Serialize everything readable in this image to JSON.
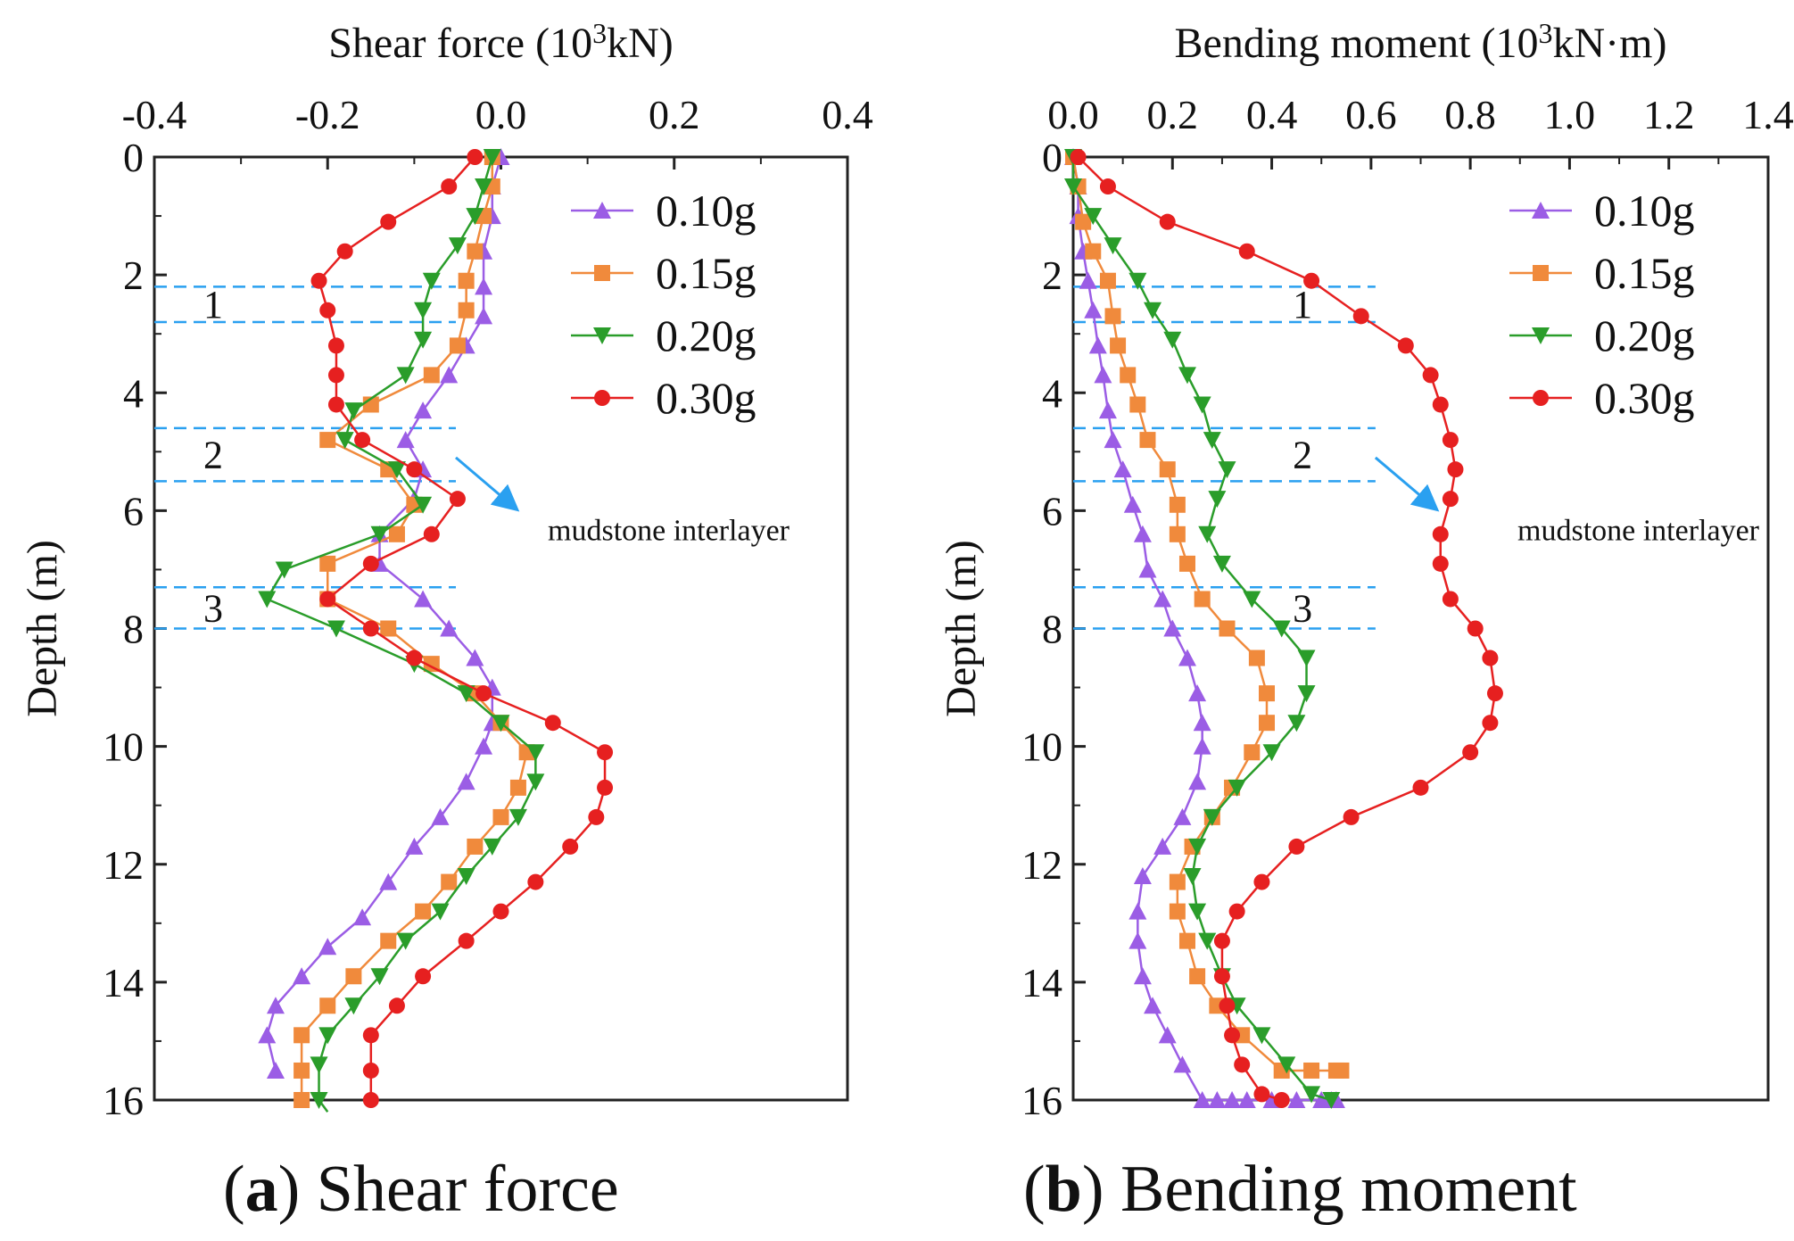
{
  "figure": {
    "captions": [
      {
        "letter": "a",
        "text": ") Shear force",
        "open": "("
      },
      {
        "letter": "b",
        "text": ") Bending moment",
        "open": "("
      }
    ]
  },
  "chart_data": [
    {
      "type": "line",
      "title": "",
      "xlabel_main": "Shear force (10",
      "xlabel_sup": "3",
      "xlabel_tail": "kN)",
      "ylabel": "Depth (m)",
      "xlim": [
        -0.4,
        0.4
      ],
      "ylim": [
        0,
        16
      ],
      "y_inverted": true,
      "x_ticks": [
        "-0.4",
        "-0.2",
        "0.0",
        "0.2",
        "0.4"
      ],
      "y_ticks": [
        "0",
        "2",
        "4",
        "6",
        "8",
        "10",
        "12",
        "14",
        "16"
      ],
      "legend": {
        "position": "top-right"
      },
      "annotation": "mudstone interlayer",
      "layers": [
        {
          "label": "1",
          "top": 2.2,
          "bottom": 2.8
        },
        {
          "label": "2",
          "top": 4.6,
          "bottom": 5.5
        },
        {
          "label": "3",
          "top": 7.3,
          "bottom": 8.0
        }
      ],
      "series": [
        {
          "name": "0.10g",
          "color": "#9b5de5",
          "marker": "triangle-up",
          "x": [
            0.0,
            -0.01,
            -0.01,
            -0.02,
            -0.02,
            -0.02,
            -0.04,
            -0.06,
            -0.09,
            -0.11,
            -0.09,
            -0.1,
            -0.14,
            -0.14,
            -0.09,
            -0.06,
            -0.03,
            -0.01,
            -0.01,
            -0.02,
            -0.04,
            -0.07,
            -0.1,
            -0.13,
            -0.16,
            -0.2,
            -0.23,
            -0.26,
            -0.27,
            -0.26
          ],
          "y": [
            0.0,
            0.5,
            1.0,
            1.6,
            2.2,
            2.7,
            3.2,
            3.7,
            4.3,
            4.8,
            5.3,
            5.8,
            6.4,
            6.9,
            7.5,
            8.0,
            8.5,
            9.0,
            9.6,
            10.0,
            10.6,
            11.2,
            11.7,
            12.3,
            12.9,
            13.4,
            13.9,
            14.4,
            14.9,
            15.5
          ]
        },
        {
          "name": "0.15g",
          "color": "#f08a3c",
          "marker": "square",
          "x": [
            -0.01,
            -0.01,
            -0.02,
            -0.03,
            -0.04,
            -0.04,
            -0.05,
            -0.08,
            -0.15,
            -0.2,
            -0.13,
            -0.1,
            -0.12,
            -0.2,
            -0.2,
            -0.13,
            -0.08,
            -0.03,
            0.0,
            0.03,
            0.02,
            0.0,
            -0.03,
            -0.06,
            -0.09,
            -0.13,
            -0.17,
            -0.2,
            -0.23,
            -0.23,
            -0.23
          ],
          "y": [
            0.0,
            0.5,
            1.0,
            1.6,
            2.1,
            2.6,
            3.2,
            3.7,
            4.2,
            4.8,
            5.3,
            5.9,
            6.4,
            6.9,
            7.5,
            8.0,
            8.6,
            9.1,
            9.6,
            10.1,
            10.7,
            11.2,
            11.7,
            12.3,
            12.8,
            13.3,
            13.9,
            14.4,
            14.9,
            15.5,
            16.0
          ]
        },
        {
          "name": "0.20g",
          "color": "#2a9d2a",
          "marker": "triangle-down",
          "x": [
            -0.01,
            -0.02,
            -0.03,
            -0.05,
            -0.08,
            -0.09,
            -0.09,
            -0.11,
            -0.17,
            -0.18,
            -0.12,
            -0.09,
            -0.14,
            -0.25,
            -0.27,
            -0.19,
            -0.1,
            -0.04,
            0.0,
            0.04,
            0.04,
            0.02,
            -0.01,
            -0.04,
            -0.07,
            -0.11,
            -0.14,
            -0.17,
            -0.2,
            -0.21,
            -0.21,
            -0.2
          ],
          "y": [
            0.0,
            0.5,
            1.0,
            1.5,
            2.1,
            2.6,
            3.1,
            3.7,
            4.3,
            4.8,
            5.3,
            5.9,
            6.4,
            7.0,
            7.5,
            8.0,
            8.6,
            9.1,
            9.6,
            10.1,
            10.6,
            11.2,
            11.7,
            12.2,
            12.8,
            13.3,
            13.9,
            14.4,
            14.9,
            15.4,
            16.0,
            16.2
          ]
        },
        {
          "name": "0.30g",
          "color": "#e62020",
          "marker": "circle",
          "x": [
            -0.03,
            -0.06,
            -0.13,
            -0.18,
            -0.21,
            -0.2,
            -0.19,
            -0.19,
            -0.19,
            -0.16,
            -0.1,
            -0.05,
            -0.08,
            -0.15,
            -0.2,
            -0.15,
            -0.1,
            -0.02,
            0.06,
            0.12,
            0.12,
            0.11,
            0.08,
            0.04,
            0.0,
            -0.04,
            -0.09,
            -0.12,
            -0.15,
            -0.15,
            -0.15
          ],
          "y": [
            0.0,
            0.5,
            1.1,
            1.6,
            2.1,
            2.6,
            3.2,
            3.7,
            4.2,
            4.8,
            5.3,
            5.8,
            6.4,
            6.9,
            7.5,
            8.0,
            8.5,
            9.1,
            9.6,
            10.1,
            10.7,
            11.2,
            11.7,
            12.3,
            12.8,
            13.3,
            13.9,
            14.4,
            14.9,
            15.5,
            16.0
          ]
        }
      ]
    },
    {
      "type": "line",
      "title": "",
      "xlabel_main": "Bending moment (10",
      "xlabel_sup": "3",
      "xlabel_tail": "kN·m)",
      "ylabel": "Depth (m)",
      "xlim": [
        0.0,
        1.4
      ],
      "ylim": [
        0,
        16
      ],
      "y_inverted": true,
      "x_ticks": [
        "0.0",
        "0.2",
        "0.4",
        "0.6",
        "0.8",
        "1.0",
        "1.2",
        "1.4"
      ],
      "y_ticks": [
        "0",
        "2",
        "4",
        "6",
        "8",
        "10",
        "12",
        "14",
        "16"
      ],
      "legend": {
        "position": "top-right"
      },
      "annotation": "mudstone interlayer",
      "layers": [
        {
          "label": "1",
          "top": 2.2,
          "bottom": 2.8
        },
        {
          "label": "2",
          "top": 4.6,
          "bottom": 5.5
        },
        {
          "label": "3",
          "top": 7.3,
          "bottom": 8.0
        }
      ],
      "series": [
        {
          "name": "0.10g",
          "color": "#9b5de5",
          "marker": "triangle-up",
          "x": [
            0.0,
            0.01,
            0.01,
            0.02,
            0.03,
            0.04,
            0.05,
            0.06,
            0.07,
            0.08,
            0.1,
            0.12,
            0.14,
            0.15,
            0.18,
            0.2,
            0.23,
            0.25,
            0.26,
            0.26,
            0.25,
            0.22,
            0.18,
            0.14,
            0.13,
            0.13,
            0.14,
            0.16,
            0.19,
            0.22,
            0.26,
            0.29,
            0.32,
            0.35,
            0.4,
            0.45,
            0.5,
            0.52,
            0.53
          ],
          "y": [
            0.0,
            0.5,
            1.0,
            1.6,
            2.1,
            2.6,
            3.2,
            3.7,
            4.3,
            4.8,
            5.3,
            5.9,
            6.4,
            7.0,
            7.5,
            8.0,
            8.5,
            9.1,
            9.6,
            10.0,
            10.6,
            11.2,
            11.7,
            12.2,
            12.8,
            13.3,
            13.9,
            14.4,
            14.9,
            15.4,
            16.0,
            16.0,
            16.0,
            16.0,
            16.0,
            16.0,
            16.0,
            16.0,
            16.0
          ]
        },
        {
          "name": "0.15g",
          "color": "#f08a3c",
          "marker": "square",
          "x": [
            0.0,
            0.01,
            0.02,
            0.04,
            0.07,
            0.08,
            0.09,
            0.11,
            0.13,
            0.15,
            0.19,
            0.21,
            0.21,
            0.23,
            0.26,
            0.31,
            0.37,
            0.39,
            0.39,
            0.36,
            0.32,
            0.28,
            0.24,
            0.21,
            0.21,
            0.23,
            0.25,
            0.29,
            0.34,
            0.42,
            0.48,
            0.53,
            0.54
          ],
          "y": [
            0.0,
            0.5,
            1.1,
            1.6,
            2.1,
            2.7,
            3.2,
            3.7,
            4.2,
            4.8,
            5.3,
            5.9,
            6.4,
            6.9,
            7.5,
            8.0,
            8.5,
            9.1,
            9.6,
            10.1,
            10.7,
            11.2,
            11.7,
            12.3,
            12.8,
            13.3,
            13.9,
            14.4,
            14.9,
            15.5,
            15.5,
            15.5,
            15.5
          ]
        },
        {
          "name": "0.20g",
          "color": "#2a9d2a",
          "marker": "triangle-down",
          "x": [
            0.0,
            0.0,
            0.04,
            0.08,
            0.13,
            0.16,
            0.2,
            0.23,
            0.26,
            0.28,
            0.31,
            0.29,
            0.27,
            0.3,
            0.36,
            0.42,
            0.47,
            0.47,
            0.45,
            0.4,
            0.33,
            0.28,
            0.25,
            0.24,
            0.25,
            0.27,
            0.3,
            0.33,
            0.38,
            0.43,
            0.48,
            0.52
          ],
          "y": [
            0.0,
            0.5,
            1.0,
            1.5,
            2.1,
            2.6,
            3.1,
            3.7,
            4.2,
            4.8,
            5.3,
            5.8,
            6.4,
            6.9,
            7.5,
            8.0,
            8.5,
            9.1,
            9.6,
            10.1,
            10.7,
            11.2,
            11.7,
            12.2,
            12.8,
            13.3,
            13.9,
            14.4,
            14.9,
            15.4,
            15.9,
            16.0
          ]
        },
        {
          "name": "0.30g",
          "color": "#e62020",
          "marker": "circle",
          "x": [
            0.01,
            0.07,
            0.19,
            0.35,
            0.48,
            0.58,
            0.67,
            0.72,
            0.74,
            0.76,
            0.77,
            0.76,
            0.74,
            0.74,
            0.76,
            0.81,
            0.84,
            0.85,
            0.84,
            0.8,
            0.7,
            0.56,
            0.45,
            0.38,
            0.33,
            0.3,
            0.3,
            0.31,
            0.32,
            0.34,
            0.38,
            0.42
          ],
          "y": [
            0.0,
            0.5,
            1.1,
            1.6,
            2.1,
            2.7,
            3.2,
            3.7,
            4.2,
            4.8,
            5.3,
            5.8,
            6.4,
            6.9,
            7.5,
            8.0,
            8.5,
            9.1,
            9.6,
            10.1,
            10.7,
            11.2,
            11.7,
            12.3,
            12.8,
            13.3,
            13.9,
            14.4,
            14.9,
            15.4,
            15.9,
            16.0
          ]
        }
      ]
    }
  ]
}
